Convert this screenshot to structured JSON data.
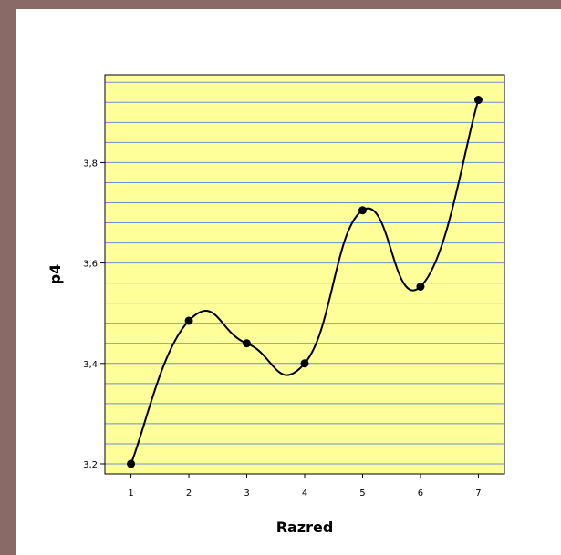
{
  "chart_data": {
    "type": "line",
    "title": "",
    "xlabel": "Razred",
    "ylabel": "p4",
    "x": [
      1,
      2,
      3,
      4,
      5,
      6,
      7
    ],
    "x_tick_labels": [
      "1",
      "2",
      "3",
      "4",
      "5",
      "6",
      "7"
    ],
    "y_tick_labels": [
      "3,2",
      "3,4",
      "3,6",
      "3,8"
    ],
    "y_ticks": [
      3.2,
      3.4,
      3.6,
      3.8
    ],
    "values": [
      3.2,
      3.485,
      3.44,
      3.4,
      3.705,
      3.553,
      3.925
    ],
    "xlim": [
      0.55,
      7.45
    ],
    "ylim": [
      3.18,
      3.975
    ],
    "grid": true,
    "legend": "none",
    "curve": "smooth spline",
    "colors": {
      "plot_background": "#ffff99",
      "grid": "#6a8fd6",
      "line": "#000000",
      "marker": "#000000",
      "frame": "#8a6a67"
    }
  }
}
